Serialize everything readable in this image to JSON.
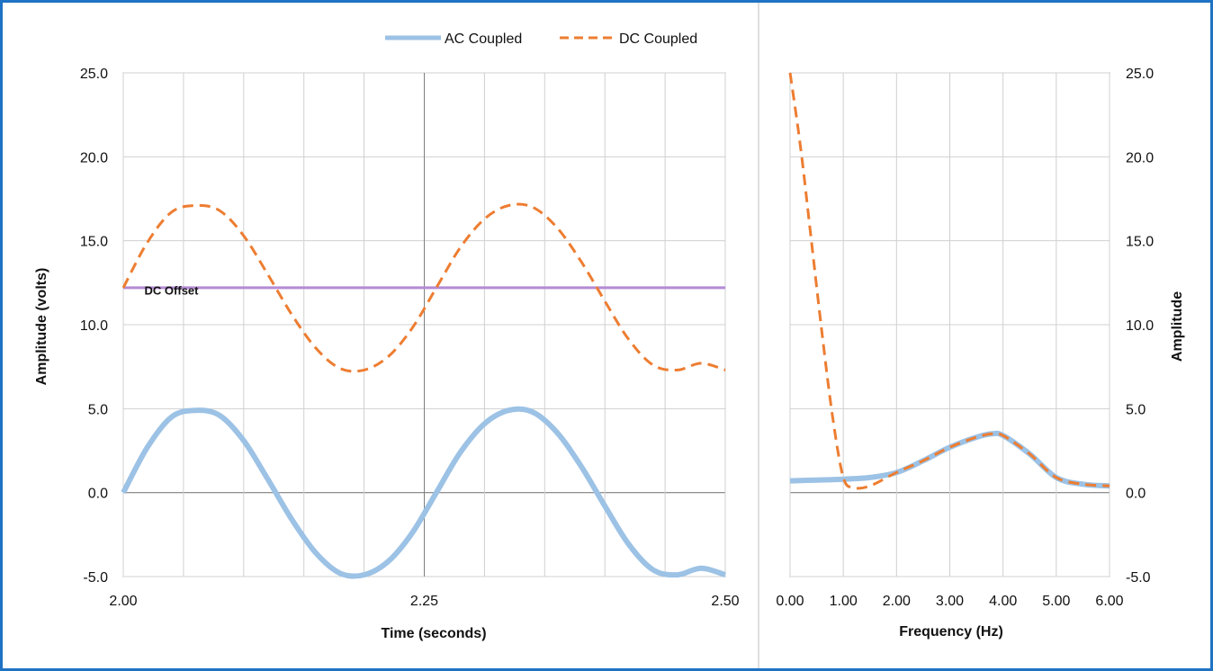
{
  "legend": {
    "placement": "top-center",
    "ac_label": "AC Coupled",
    "dc_label": "DC Coupled"
  },
  "colors": {
    "ac": "#9cc2e5",
    "dc": "#ed7d31",
    "dc_offset": "#b48ad4",
    "grid": "#d0d0d0",
    "axis": "#7f7f7f",
    "frame": "#1f72c4"
  },
  "chart_data": [
    {
      "type": "line",
      "title": "",
      "xlabel": "Time (seconds)",
      "ylabel": "Amplitude (volts)",
      "xlim": [
        2.0,
        2.5
      ],
      "ylim": [
        -5.0,
        25.0
      ],
      "grid": true,
      "x_ticks": [
        "2.00",
        "2.25",
        "2.50"
      ],
      "y_ticks": [
        "-5.0",
        "0.0",
        "5.0",
        "10.0",
        "15.0",
        "20.0",
        "25.0"
      ],
      "annotations": [
        {
          "text": "DC Offset",
          "x": 2.04,
          "y": 11.8
        }
      ],
      "reference_lines": [
        {
          "label": "DC Offset",
          "y": 12.2
        }
      ],
      "series": [
        {
          "name": "AC Coupled",
          "style": "solid",
          "x": [
            2.0,
            2.02,
            2.04,
            2.06,
            2.08,
            2.1,
            2.12,
            2.14,
            2.16,
            2.18,
            2.2,
            2.22,
            2.24,
            2.26,
            2.28,
            2.3,
            2.32,
            2.34,
            2.36,
            2.38,
            2.4,
            2.42,
            2.44,
            2.46,
            2.48,
            2.5
          ],
          "y": [
            0.0,
            2.7,
            4.5,
            4.9,
            4.6,
            3.1,
            0.8,
            -1.6,
            -3.6,
            -4.8,
            -4.9,
            -4.1,
            -2.4,
            0.0,
            2.4,
            4.1,
            4.9,
            4.8,
            3.6,
            1.6,
            -0.8,
            -3.1,
            -4.6,
            -4.9,
            -4.5,
            -4.9
          ]
        },
        {
          "name": "DC Coupled",
          "style": "dashed",
          "x": [
            2.0,
            2.02,
            2.04,
            2.06,
            2.08,
            2.1,
            2.12,
            2.14,
            2.16,
            2.18,
            2.2,
            2.22,
            2.24,
            2.26,
            2.28,
            2.3,
            2.32,
            2.34,
            2.36,
            2.38,
            2.4,
            2.42,
            2.44,
            2.46,
            2.48,
            2.5
          ],
          "y": [
            12.2,
            14.9,
            16.7,
            17.1,
            16.8,
            15.3,
            13.0,
            10.6,
            8.6,
            7.4,
            7.3,
            8.1,
            9.8,
            12.2,
            14.6,
            16.3,
            17.1,
            17.0,
            15.8,
            13.8,
            11.4,
            9.1,
            7.6,
            7.3,
            7.7,
            7.3
          ]
        }
      ]
    },
    {
      "type": "line",
      "title": "",
      "xlabel": "Frequency (Hz)",
      "ylabel": "Amplitude",
      "xlim": [
        0.0,
        6.0
      ],
      "ylim": [
        -5.0,
        25.0
      ],
      "grid": true,
      "x_ticks": [
        "0.00",
        "1.00",
        "2.00",
        "3.00",
        "4.00",
        "5.00",
        "6.00"
      ],
      "y_ticks": [
        "-5.0",
        "0.0",
        "5.0",
        "10.0",
        "15.0",
        "20.0",
        "25.0"
      ],
      "y_axis_side": "right",
      "series": [
        {
          "name": "AC Coupled",
          "style": "solid",
          "x": [
            0.0,
            0.5,
            1.0,
            1.5,
            2.0,
            2.5,
            3.0,
            3.5,
            3.8,
            4.0,
            4.5,
            5.0,
            5.5,
            6.0
          ],
          "y": [
            0.7,
            0.75,
            0.8,
            0.9,
            1.2,
            1.9,
            2.7,
            3.3,
            3.5,
            3.4,
            2.3,
            0.9,
            0.5,
            0.4
          ]
        },
        {
          "name": "DC Coupled",
          "style": "dashed",
          "x": [
            0.0,
            0.2,
            0.4,
            0.6,
            0.8,
            1.0,
            1.2,
            1.5,
            2.0,
            2.5,
            3.0,
            3.5,
            3.8,
            4.0,
            4.5,
            5.0,
            5.5,
            6.0
          ],
          "y": [
            25.0,
            20.5,
            15.0,
            9.5,
            4.5,
            0.9,
            0.3,
            0.4,
            1.2,
            1.9,
            2.7,
            3.3,
            3.5,
            3.4,
            2.3,
            0.9,
            0.5,
            0.4
          ]
        }
      ]
    }
  ]
}
